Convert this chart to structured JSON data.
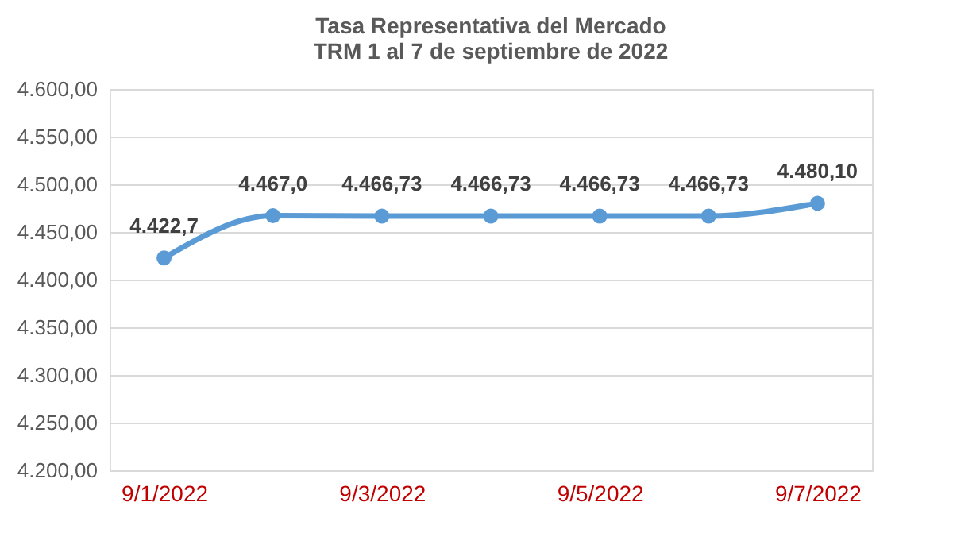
{
  "chart_data": {
    "type": "line",
    "title": [
      "Tasa Representativa del Mercado",
      "TRM 1 al 7 de septiembre de 2022"
    ],
    "categories": [
      "9/1/2022",
      null,
      "9/3/2022",
      null,
      "9/5/2022",
      null,
      "9/7/2022"
    ],
    "series": [
      {
        "color": "#5b9bd5",
        "values": [
          4422.7,
          4467.0,
          4466.73,
          4466.73,
          4466.73,
          4466.73,
          4480.1
        ],
        "value_labels": [
          "4.422,7",
          "4.467,0",
          "4.466,73",
          "4.466,73",
          "4.466,73",
          "4.466,73",
          "4.480,10"
        ]
      }
    ],
    "ylim": [
      4200,
      4600
    ],
    "yticks": [
      {
        "value": 4200,
        "label": "4.200,00"
      },
      {
        "value": 4250,
        "label": "4.250,00"
      },
      {
        "value": 4300,
        "label": "4.300,00"
      },
      {
        "value": 4350,
        "label": "4.350,00"
      },
      {
        "value": 4400,
        "label": "4.400,00"
      },
      {
        "value": 4450,
        "label": "4.450,00"
      },
      {
        "value": 4500,
        "label": "4.500,00"
      },
      {
        "value": 4550,
        "label": "4.550,00"
      },
      {
        "value": 4600,
        "label": "4.600,00"
      }
    ],
    "grid": "y",
    "marker": "circle"
  }
}
